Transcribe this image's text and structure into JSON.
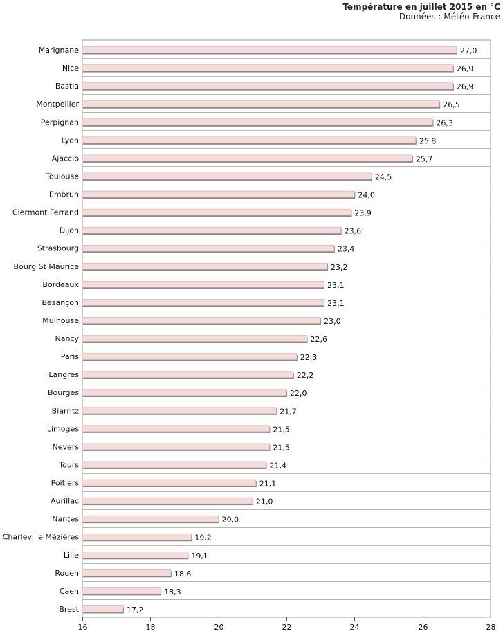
{
  "chart_data": {
    "type": "bar",
    "orientation": "horizontal",
    "title": "Température en juillet 2015 en °C",
    "subtitle": "Données : Météo-France",
    "xlabel": "",
    "ylabel": "",
    "xlim": [
      16,
      28
    ],
    "x_ticks": [
      "16",
      "18",
      "20",
      "22",
      "24",
      "26",
      "28"
    ],
    "grid": "horizontal lines between categories",
    "bar_color": "#f4dcdc",
    "bar_border": "#d9a8a8",
    "categories": [
      "Marignane",
      "Nice",
      "Bastia",
      "Montpellier",
      "Perpignan",
      "Lyon",
      "Ajaccio",
      "Toulouse",
      "Embrun",
      "Clermont Ferrand",
      "Dijon",
      "Strasbourg",
      "Bourg St Maurice",
      "Bordeaux",
      "Besançon",
      "Mulhouse",
      "Nancy",
      "Paris",
      "Langres",
      "Bourges",
      "Biarritz",
      "Limoges",
      "Nevers",
      "Tours",
      "Poitiers",
      "Aurillac",
      "Nantes",
      "Charleville Mézières",
      "Lille",
      "Rouen",
      "Caen",
      "Brest"
    ],
    "values": [
      27.0,
      26.9,
      26.9,
      26.5,
      26.3,
      25.8,
      25.7,
      24.5,
      24.0,
      23.9,
      23.6,
      23.4,
      23.2,
      23.1,
      23.1,
      23.0,
      22.6,
      22.3,
      22.2,
      22.0,
      21.7,
      21.5,
      21.5,
      21.4,
      21.1,
      21.0,
      20.0,
      19.2,
      19.1,
      18.6,
      18.3,
      17.2
    ],
    "value_labels": [
      "27,0",
      "26,9",
      "26,9",
      "26,5",
      "26,3",
      "25,8",
      "25,7",
      "24,5",
      "24,0",
      "23,9",
      "23,6",
      "23,4",
      "23,2",
      "23,1",
      "23,1",
      "23,0",
      "22,6",
      "22,3",
      "22,2",
      "22,0",
      "21,7",
      "21,5",
      "21,5",
      "21,4",
      "21,1",
      "21,0",
      "20,0",
      "19,2",
      "19,1",
      "18,6",
      "18,3",
      "17,2"
    ]
  }
}
